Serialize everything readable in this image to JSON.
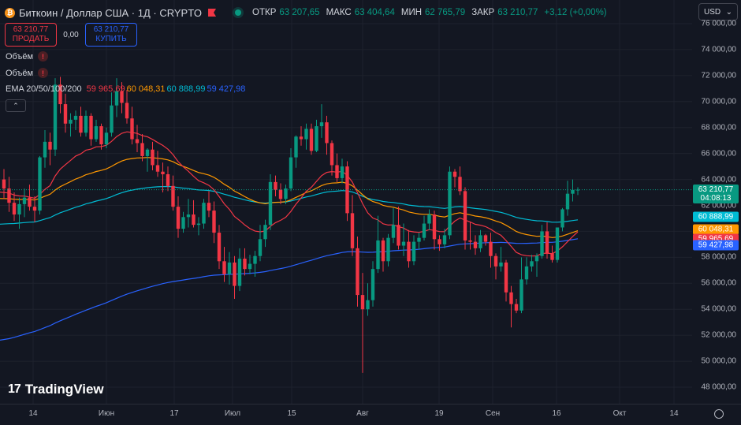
{
  "header": {
    "title": "Биткоин / Доллар США · 1Д · CRYPTO",
    "ohlc": [
      {
        "k": "ОТКР",
        "v": "63 207,65"
      },
      {
        "k": "МАКС",
        "v": "63 404,64"
      },
      {
        "k": "МИН",
        "v": "62 765,79"
      },
      {
        "k": "ЗАКР",
        "v": "63 210,77"
      },
      {
        "k": "",
        "v": "+3,12 (+0,00%)"
      }
    ]
  },
  "trade": {
    "sell_price": "63 210,77",
    "sell_label": "ПРОДАТЬ",
    "spread": "0,00",
    "buy_price": "63 210,77",
    "buy_label": "КУПИТЬ"
  },
  "indicators": {
    "volume1": "Объём",
    "volume2": "Объём",
    "ema_label": "EMA 20/50/100/200",
    "ema_values": [
      "59 965,69",
      "60 048,31",
      "60 888,99",
      "59 427,98"
    ]
  },
  "currency": {
    "label": "USD"
  },
  "colors": {
    "up": "#089981",
    "down": "#f23645",
    "ema20": "#f23645",
    "ema50": "#ff9800",
    "ema100": "#00bcd4",
    "ema200": "#2962ff"
  },
  "price_axis": {
    "labels": [
      "76 000,00",
      "74 000,00",
      "72 000,00",
      "70 000,00",
      "68 000,00",
      "66 000,00",
      "64 000,00",
      "62 000,00",
      "60 000,00",
      "58 000,00",
      "56 000,00",
      "54 000,00",
      "52 000,00",
      "50 000,00",
      "48 000,00"
    ],
    "current_price": "63 210,77",
    "countdown": "04:08:13",
    "tag_ema100": "60 888,99",
    "tag_ema50": "60 048,31",
    "tag_ema20": "59 965,69",
    "tag_ema200": "59 427,98"
  },
  "time_axis": [
    "14",
    "Июн",
    "17",
    "Июл",
    "15",
    "Авг",
    "19",
    "Сен",
    "16",
    "Окт",
    "14"
  ],
  "logo": {
    "text": "TradingView"
  },
  "chart_data": {
    "type": "candlestick",
    "title": "Биткоин / Доллар США · 1Д · CRYPTO",
    "ylim": [
      47000,
      77000
    ],
    "x_ticks": [
      "14",
      "Июн",
      "17",
      "Июл",
      "15",
      "Авг",
      "19",
      "Сен",
      "16",
      "Окт",
      "14"
    ],
    "candles_ohlc": [
      [
        64000,
        64800,
        62500,
        63300
      ],
      [
        63300,
        64200,
        61500,
        62200
      ],
      [
        62200,
        63000,
        60800,
        61300
      ],
      [
        61300,
        62600,
        60200,
        62100
      ],
      [
        62100,
        63300,
        61100,
        62600
      ],
      [
        62600,
        63600,
        61600,
        61900
      ],
      [
        61900,
        62700,
        60700,
        61600
      ],
      [
        61600,
        65800,
        61300,
        65700
      ],
      [
        65700,
        67800,
        64900,
        66900
      ],
      [
        66900,
        67600,
        65100,
        66300
      ],
      [
        66300,
        71800,
        65800,
        71300
      ],
      [
        71300,
        71900,
        69100,
        69800
      ],
      [
        69800,
        70600,
        67600,
        68300
      ],
      [
        68300,
        69100,
        67300,
        68600
      ],
      [
        68600,
        69300,
        67800,
        68900
      ],
      [
        68900,
        69600,
        67300,
        67600
      ],
      [
        67600,
        69300,
        67300,
        68900
      ],
      [
        68900,
        69100,
        66600,
        67100
      ],
      [
        67100,
        68600,
        66900,
        68100
      ],
      [
        68100,
        68300,
        66300,
        66700
      ],
      [
        66700,
        68000,
        66400,
        67600
      ],
      [
        67600,
        70700,
        67300,
        69700
      ],
      [
        69700,
        71800,
        68800,
        70800
      ],
      [
        70800,
        71500,
        69100,
        69900
      ],
      [
        69900,
        70900,
        68300,
        68700
      ],
      [
        68700,
        69600,
        66700,
        67100
      ],
      [
        67100,
        68200,
        66100,
        66800
      ],
      [
        66800,
        67500,
        65400,
        65800
      ],
      [
        65800,
        66400,
        64600,
        66300
      ],
      [
        66300,
        66900,
        64700,
        65100
      ],
      [
        65100,
        66200,
        64200,
        64600
      ],
      [
        64600,
        65300,
        63000,
        64400
      ],
      [
        64400,
        65000,
        63100,
        63500
      ],
      [
        63500,
        64300,
        61600,
        61900
      ],
      [
        61900,
        62700,
        59500,
        60200
      ],
      [
        60200,
        61500,
        59900,
        61100
      ],
      [
        61100,
        62500,
        60300,
        61300
      ],
      [
        61300,
        62400,
        60300,
        60500
      ],
      [
        60500,
        61100,
        59700,
        60600
      ],
      [
        60600,
        62500,
        60200,
        62200
      ],
      [
        62200,
        63100,
        61100,
        61600
      ],
      [
        61600,
        62300,
        59100,
        59900
      ],
      [
        59900,
        60500,
        57100,
        57700
      ],
      [
        57700,
        58800,
        56100,
        56700
      ],
      [
        56700,
        58400,
        55900,
        57600
      ],
      [
        57600,
        58100,
        54800,
        55800
      ],
      [
        55800,
        58700,
        55400,
        57900
      ],
      [
        57900,
        58700,
        56600,
        57100
      ],
      [
        57100,
        58200,
        56700,
        57500
      ],
      [
        57500,
        58500,
        56500,
        58100
      ],
      [
        58100,
        60500,
        57700,
        59400
      ],
      [
        59400,
        60900,
        58800,
        60500
      ],
      [
        60500,
        64400,
        60100,
        63800
      ],
      [
        63800,
        64300,
        62700,
        63200
      ],
      [
        63200,
        63700,
        62100,
        62500
      ],
      [
        62500,
        63600,
        62100,
        63300
      ],
      [
        63300,
        66400,
        63100,
        65700
      ],
      [
        65700,
        67400,
        64900,
        67300
      ],
      [
        67300,
        68100,
        66600,
        67100
      ],
      [
        67100,
        68300,
        66300,
        67900
      ],
      [
        67900,
        68300,
        65900,
        66200
      ],
      [
        66200,
        68600,
        66100,
        68100
      ],
      [
        68100,
        69800,
        67200,
        68400
      ],
      [
        68400,
        68900,
        65900,
        66800
      ],
      [
        66800,
        67000,
        64300,
        65100
      ],
      [
        65100,
        66000,
        63800,
        64100
      ],
      [
        64100,
        65600,
        63700,
        65000
      ],
      [
        65000,
        65400,
        60800,
        61400
      ],
      [
        61400,
        62800,
        58100,
        58700
      ],
      [
        58700,
        59600,
        54200,
        55100
      ],
      [
        55100,
        56800,
        49100,
        54000
      ],
      [
        54000,
        56000,
        53500,
        54700
      ],
      [
        54700,
        57700,
        54200,
        57100
      ],
      [
        57100,
        61200,
        56800,
        59300
      ],
      [
        59300,
        59500,
        56900,
        57700
      ],
      [
        57700,
        59800,
        57300,
        59500
      ],
      [
        59500,
        61800,
        59100,
        60500
      ],
      [
        60500,
        61900,
        58600,
        58900
      ],
      [
        58900,
        60600,
        58100,
        59200
      ],
      [
        59200,
        60100,
        57200,
        57700
      ],
      [
        57700,
        59700,
        57400,
        59200
      ],
      [
        59200,
        59900,
        58600,
        59500
      ],
      [
        59500,
        61200,
        59300,
        60600
      ],
      [
        60600,
        61700,
        60100,
        61300
      ],
      [
        61300,
        61600,
        58600,
        59400
      ],
      [
        59400,
        59700,
        58500,
        59000
      ],
      [
        59000,
        60200,
        58700,
        59700
      ],
      [
        59700,
        65000,
        59400,
        64600
      ],
      [
        64600,
        64800,
        63400,
        64200
      ],
      [
        64200,
        65000,
        62800,
        63100
      ],
      [
        63100,
        63400,
        58600,
        59300
      ],
      [
        59300,
        60700,
        58600,
        59200
      ],
      [
        59200,
        59700,
        58200,
        58700
      ],
      [
        58700,
        60100,
        58400,
        59700
      ],
      [
        59700,
        59800,
        58900,
        59200
      ],
      [
        59200,
        59900,
        57200,
        58100
      ],
      [
        58100,
        58300,
        56300,
        57300
      ],
      [
        57300,
        58800,
        56900,
        57600
      ],
      [
        57600,
        57800,
        54600,
        55300
      ],
      [
        55300,
        55800,
        52600,
        54400
      ],
      [
        54400,
        54800,
        53700,
        53900
      ],
      [
        53900,
        58000,
        53700,
        56300
      ],
      [
        56300,
        58000,
        55900,
        57300
      ],
      [
        57300,
        58200,
        56900,
        57700
      ],
      [
        57700,
        58300,
        56500,
        58100
      ],
      [
        58100,
        60500,
        57900,
        60000
      ],
      [
        60000,
        60700,
        57900,
        58300
      ],
      [
        58300,
        58900,
        57600,
        57800
      ],
      [
        57800,
        60300,
        57600,
        60300
      ],
      [
        60300,
        61800,
        60000,
        61700
      ],
      [
        61700,
        63900,
        61200,
        62900
      ],
      [
        62900,
        64000,
        62300,
        63200
      ],
      [
        63200,
        63400,
        62800,
        63210
      ]
    ],
    "ema": {
      "EMA20": {
        "last": 59965.69
      },
      "EMA50": {
        "last": 60048.31
      },
      "EMA100": {
        "last": 60888.99
      },
      "EMA200": {
        "last": 59427.98
      }
    }
  }
}
